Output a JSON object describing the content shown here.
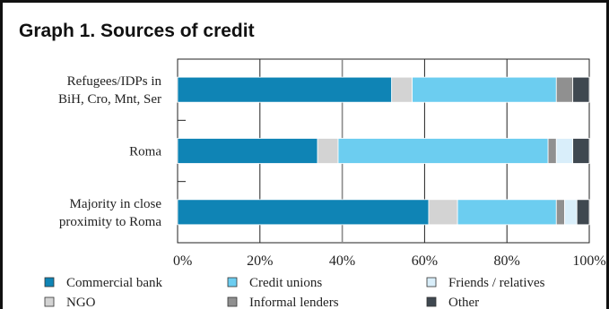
{
  "title": "Graph 1. Sources of credit",
  "colors": {
    "Commercial bank": "#0f84b5",
    "NGO": "#d3d3d3",
    "Credit unions": "#6ccdf0",
    "Informal lenders": "#909090",
    "Friends / relatives": "#d9eefa",
    "Other": "#3f4850"
  },
  "chart_data": {
    "type": "bar",
    "orientation": "horizontal",
    "stacked": true,
    "title": "Graph 1. Sources of credit",
    "categories": [
      [
        "Refugees/IDPs in",
        "BiH, Cro, Mnt, Ser"
      ],
      [
        "Roma"
      ],
      [
        "Majority in close",
        "proximity to Roma"
      ]
    ],
    "series": [
      {
        "name": "Commercial bank",
        "values": [
          52,
          34,
          61
        ]
      },
      {
        "name": "NGO",
        "values": [
          5,
          5,
          7
        ]
      },
      {
        "name": "Credit unions",
        "values": [
          35,
          51,
          24
        ]
      },
      {
        "name": "Informal lenders",
        "values": [
          4,
          2,
          2
        ]
      },
      {
        "name": "Friends / relatives",
        "values": [
          0,
          4,
          3
        ]
      },
      {
        "name": "Other",
        "values": [
          4,
          4,
          3
        ]
      }
    ],
    "xlim": [
      0,
      100
    ],
    "xticks": [
      "0%",
      "20%",
      "40%",
      "60%",
      "80%",
      "100%"
    ],
    "grid": true,
    "legend_position": "bottom",
    "legend_order": [
      "Commercial bank",
      "Credit unions",
      "Friends / relatives",
      "NGO",
      "Informal lenders",
      "Other"
    ]
  }
}
